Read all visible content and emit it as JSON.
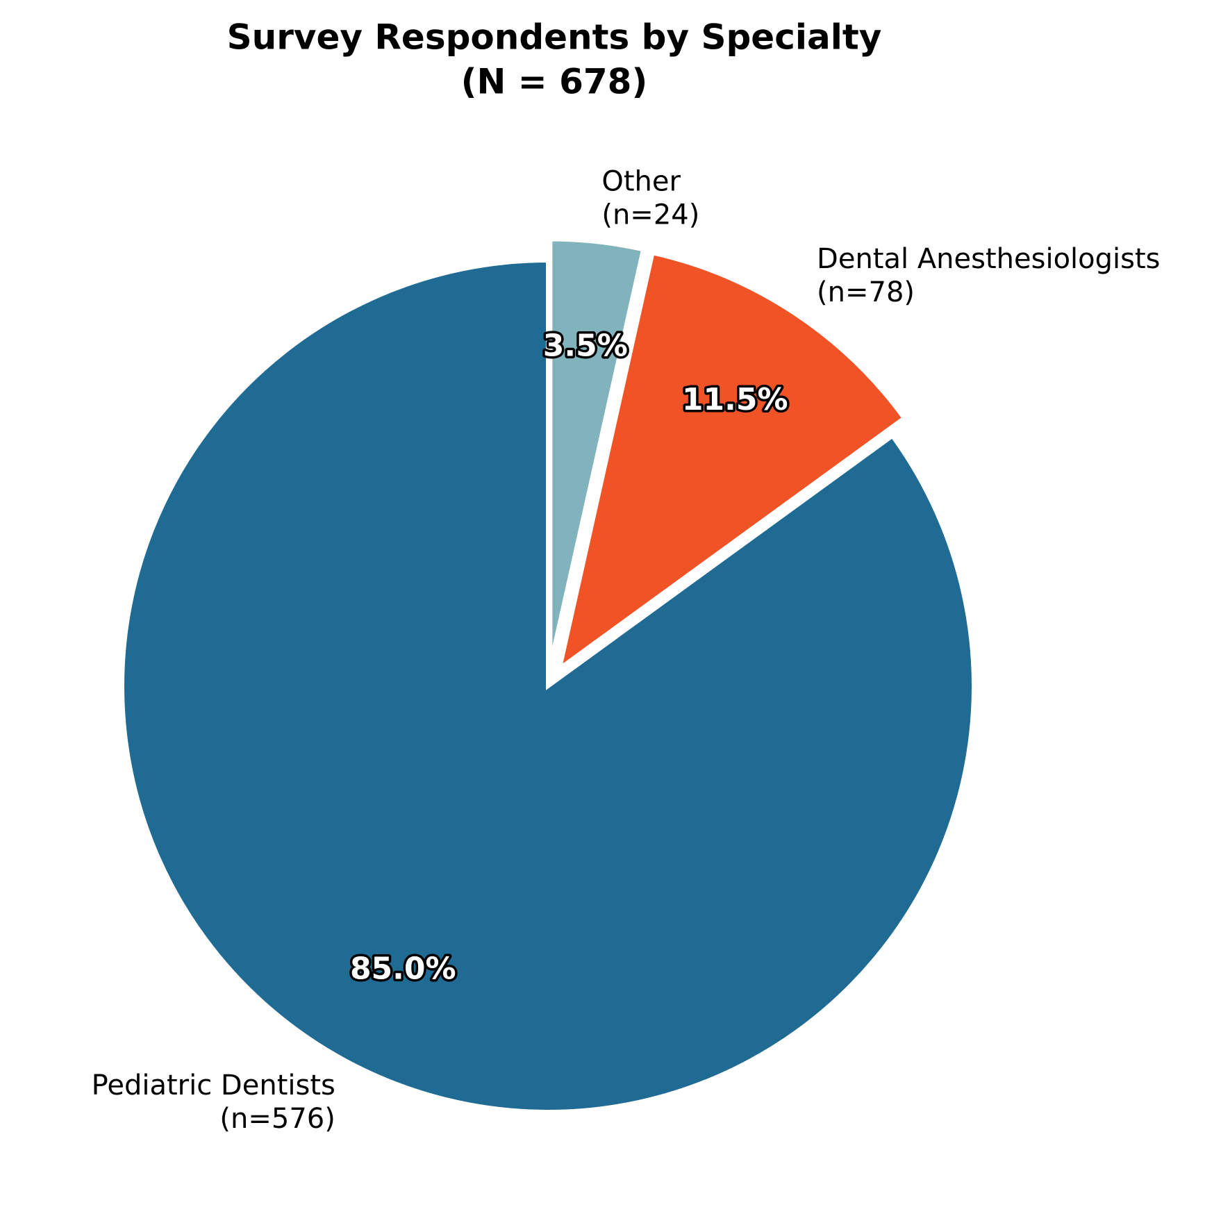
{
  "chart_data": {
    "type": "pie",
    "title": "Survey Respondents by Specialty",
    "subtitle": "(N = 678)",
    "categories": [
      "Pediatric Dentists",
      "Dental Anesthesiologists",
      "Other"
    ],
    "values": [
      85.0,
      11.5,
      3.5
    ],
    "value_labels": [
      "85.0%",
      "11.5%",
      "3.5%"
    ],
    "counts": [
      576,
      78,
      24
    ],
    "count_labels": [
      "(n=576)",
      "(n=78)",
      "(n=24)"
    ],
    "colors": [
      "#1f6b93",
      "#f05426",
      "#80b3bb"
    ],
    "explode": [
      0,
      0.05,
      0.05
    ],
    "start_angle": 90,
    "counterclock": true
  }
}
